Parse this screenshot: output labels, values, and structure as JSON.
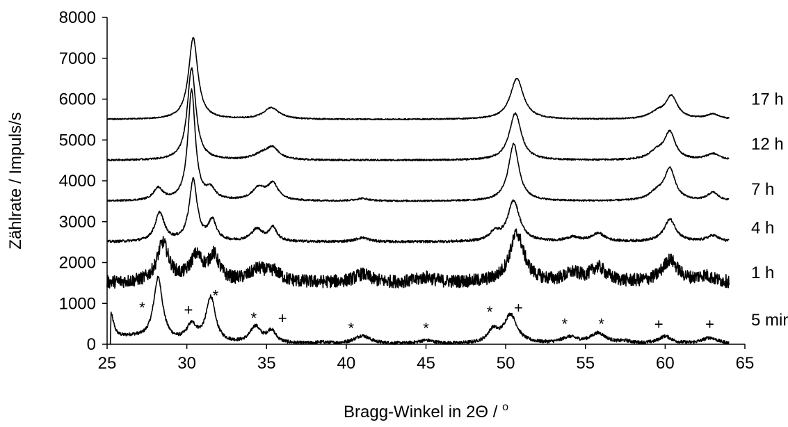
{
  "chart_data": {
    "type": "line",
    "title": "",
    "xlabel": "Bragg-Winkel in 2Θ / °",
    "xlabel_main": "Bragg-Winkel in 2Θ / ",
    "xlabel_sup": "o",
    "ylabel": "Zählrate / Impuls/s",
    "xlim": [
      25,
      65
    ],
    "ylim": [
      0,
      8000
    ],
    "xticks": [
      "25",
      "30",
      "35",
      "40",
      "45",
      "50",
      "55",
      "60",
      "65"
    ],
    "yticks": [
      "0",
      "1000",
      "2000",
      "3000",
      "4000",
      "5000",
      "6000",
      "7000",
      "8000"
    ],
    "grid": false,
    "legend": "none",
    "series": [
      {
        "name": "5 min",
        "baseline": 0,
        "noise": 40,
        "peaks": [
          [
            25.2,
            700,
            0.25
          ],
          [
            26.5,
            150,
            1.2
          ],
          [
            28.2,
            1550,
            0.35
          ],
          [
            30.3,
            400,
            0.4
          ],
          [
            31.5,
            1100,
            0.35
          ],
          [
            34.3,
            400,
            0.4
          ],
          [
            35.3,
            300,
            0.35
          ],
          [
            38.5,
            30,
            0.5
          ],
          [
            41.0,
            200,
            0.6
          ],
          [
            45.0,
            80,
            0.6
          ],
          [
            49.2,
            300,
            0.4
          ],
          [
            50.3,
            700,
            0.5
          ],
          [
            54.0,
            150,
            0.6
          ],
          [
            55.8,
            250,
            0.6
          ],
          [
            57.5,
            50,
            0.5
          ],
          [
            60.0,
            180,
            0.5
          ],
          [
            62.8,
            150,
            0.6
          ]
        ],
        "label_y": 600
      },
      {
        "name": "1 h",
        "baseline": 1500,
        "noise": 160,
        "peaks": [
          [
            28.5,
            950,
            0.45
          ],
          [
            30.6,
            600,
            0.5
          ],
          [
            31.7,
            600,
            0.4
          ],
          [
            34.5,
            300,
            0.7
          ],
          [
            35.5,
            200,
            0.5
          ],
          [
            41.0,
            200,
            0.6
          ],
          [
            45.0,
            120,
            0.6
          ],
          [
            50.7,
            1200,
            0.55
          ],
          [
            54.2,
            200,
            0.6
          ],
          [
            55.8,
            350,
            0.6
          ],
          [
            60.3,
            550,
            0.6
          ],
          [
            62.5,
            150,
            0.6
          ]
        ],
        "label_y": 1750
      },
      {
        "name": "4 h",
        "baseline": 2500,
        "noise": 30,
        "peaks": [
          [
            28.3,
            700,
            0.35
          ],
          [
            30.4,
            1500,
            0.3
          ],
          [
            31.6,
            500,
            0.3
          ],
          [
            34.4,
            300,
            0.45
          ],
          [
            35.4,
            330,
            0.3
          ],
          [
            41.0,
            100,
            0.5
          ],
          [
            49.3,
            200,
            0.4
          ],
          [
            50.5,
            1000,
            0.45
          ],
          [
            54.2,
            100,
            0.5
          ],
          [
            55.8,
            200,
            0.5
          ],
          [
            60.3,
            550,
            0.45
          ],
          [
            63.0,
            150,
            0.45
          ]
        ],
        "label_y": 2850
      },
      {
        "name": "7 h",
        "baseline": 3500,
        "noise": 20,
        "peaks": [
          [
            28.2,
            300,
            0.35
          ],
          [
            30.3,
            2700,
            0.28
          ],
          [
            31.5,
            250,
            0.35
          ],
          [
            34.5,
            300,
            0.5
          ],
          [
            35.4,
            400,
            0.4
          ],
          [
            41.0,
            60,
            0.5
          ],
          [
            50.5,
            1400,
            0.4
          ],
          [
            59.5,
            200,
            0.6
          ],
          [
            60.3,
            750,
            0.4
          ],
          [
            63.0,
            200,
            0.4
          ]
        ],
        "label_y": 3800
      },
      {
        "name": "12 h",
        "baseline": 4500,
        "noise": 20,
        "peaks": [
          [
            30.3,
            2250,
            0.32
          ],
          [
            34.8,
            150,
            0.7
          ],
          [
            35.4,
            250,
            0.45
          ],
          [
            50.6,
            1150,
            0.45
          ],
          [
            59.5,
            200,
            0.6
          ],
          [
            60.3,
            650,
            0.4
          ],
          [
            63.0,
            150,
            0.5
          ]
        ],
        "label_y": 4900
      },
      {
        "name": "17 h",
        "baseline": 5500,
        "noise": 15,
        "peaks": [
          [
            30.4,
            2000,
            0.35
          ],
          [
            35.3,
            280,
            0.6
          ],
          [
            50.7,
            1000,
            0.5
          ],
          [
            59.5,
            150,
            0.6
          ],
          [
            60.4,
            550,
            0.45
          ],
          [
            63.0,
            120,
            0.5
          ]
        ],
        "label_y": 6000
      }
    ],
    "annotations": [
      {
        "text": "*",
        "x": 27.2,
        "y": 900
      },
      {
        "text": "+",
        "x": 30.1,
        "y": 850
      },
      {
        "text": "*",
        "x": 31.8,
        "y": 1200
      },
      {
        "text": "*",
        "x": 34.2,
        "y": 650
      },
      {
        "text": "+",
        "x": 36.0,
        "y": 650
      },
      {
        "text": "*",
        "x": 40.3,
        "y": 400
      },
      {
        "text": "*",
        "x": 45.0,
        "y": 400
      },
      {
        "text": "*",
        "x": 49.0,
        "y": 800
      },
      {
        "text": "+",
        "x": 50.8,
        "y": 900
      },
      {
        "text": "*",
        "x": 53.7,
        "y": 500
      },
      {
        "text": "*",
        "x": 56.0,
        "y": 500
      },
      {
        "text": "+",
        "x": 59.6,
        "y": 500
      },
      {
        "text": "+",
        "x": 62.8,
        "y": 500
      }
    ]
  }
}
